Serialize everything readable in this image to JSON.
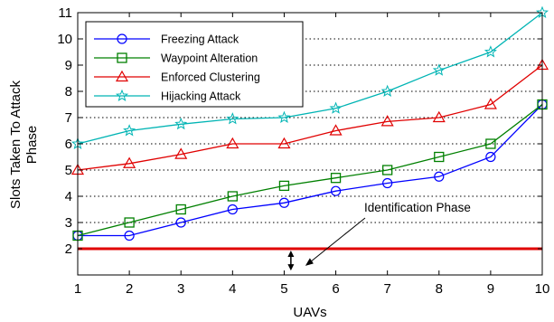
{
  "chart_data": {
    "type": "line",
    "title": "",
    "xlabel": "UAVs",
    "ylabel_lines": [
      "Slots Taken To Attack",
      "Phase"
    ],
    "x": [
      1,
      2,
      3,
      4,
      5,
      6,
      7,
      8,
      9,
      10
    ],
    "xlim": [
      1,
      10
    ],
    "ylim": [
      1,
      11
    ],
    "xticks": [
      "1",
      "2",
      "3",
      "4",
      "5",
      "6",
      "7",
      "8",
      "9",
      "10"
    ],
    "yticks": [
      "2",
      "3",
      "4",
      "5",
      "6",
      "7",
      "8",
      "9",
      "10",
      "11"
    ],
    "grid": "horizontal dotted",
    "legend_position": "upper-left",
    "series": [
      {
        "name": "Freezing Attack",
        "color": "#0000ff",
        "marker": "circle",
        "values": [
          2.5,
          2.5,
          3.0,
          3.5,
          3.75,
          4.2,
          4.5,
          4.75,
          5.5,
          7.5
        ]
      },
      {
        "name": "Waypoint Alteration",
        "color": "#008000",
        "marker": "square",
        "values": [
          2.5,
          3.0,
          3.5,
          4.0,
          4.4,
          4.7,
          5.0,
          5.5,
          6.0,
          7.5
        ]
      },
      {
        "name": "Enforced Clustering",
        "color": "#e00000",
        "marker": "triangle",
        "values": [
          5.0,
          5.25,
          5.6,
          6.0,
          6.0,
          6.5,
          6.85,
          7.0,
          7.5,
          9.0
        ]
      },
      {
        "name": "Hijacking Attack",
        "color": "#00b4b4",
        "marker": "star",
        "values": [
          6.0,
          6.5,
          6.75,
          6.95,
          7.0,
          7.35,
          8.0,
          8.8,
          9.5,
          11.0
        ]
      }
    ],
    "reference_line": {
      "value": 2.0,
      "color": "#e00000"
    },
    "annotation": {
      "text": "Identification Phase",
      "x": 5.2,
      "y_low": 1.1,
      "y_high": 2.0
    }
  }
}
